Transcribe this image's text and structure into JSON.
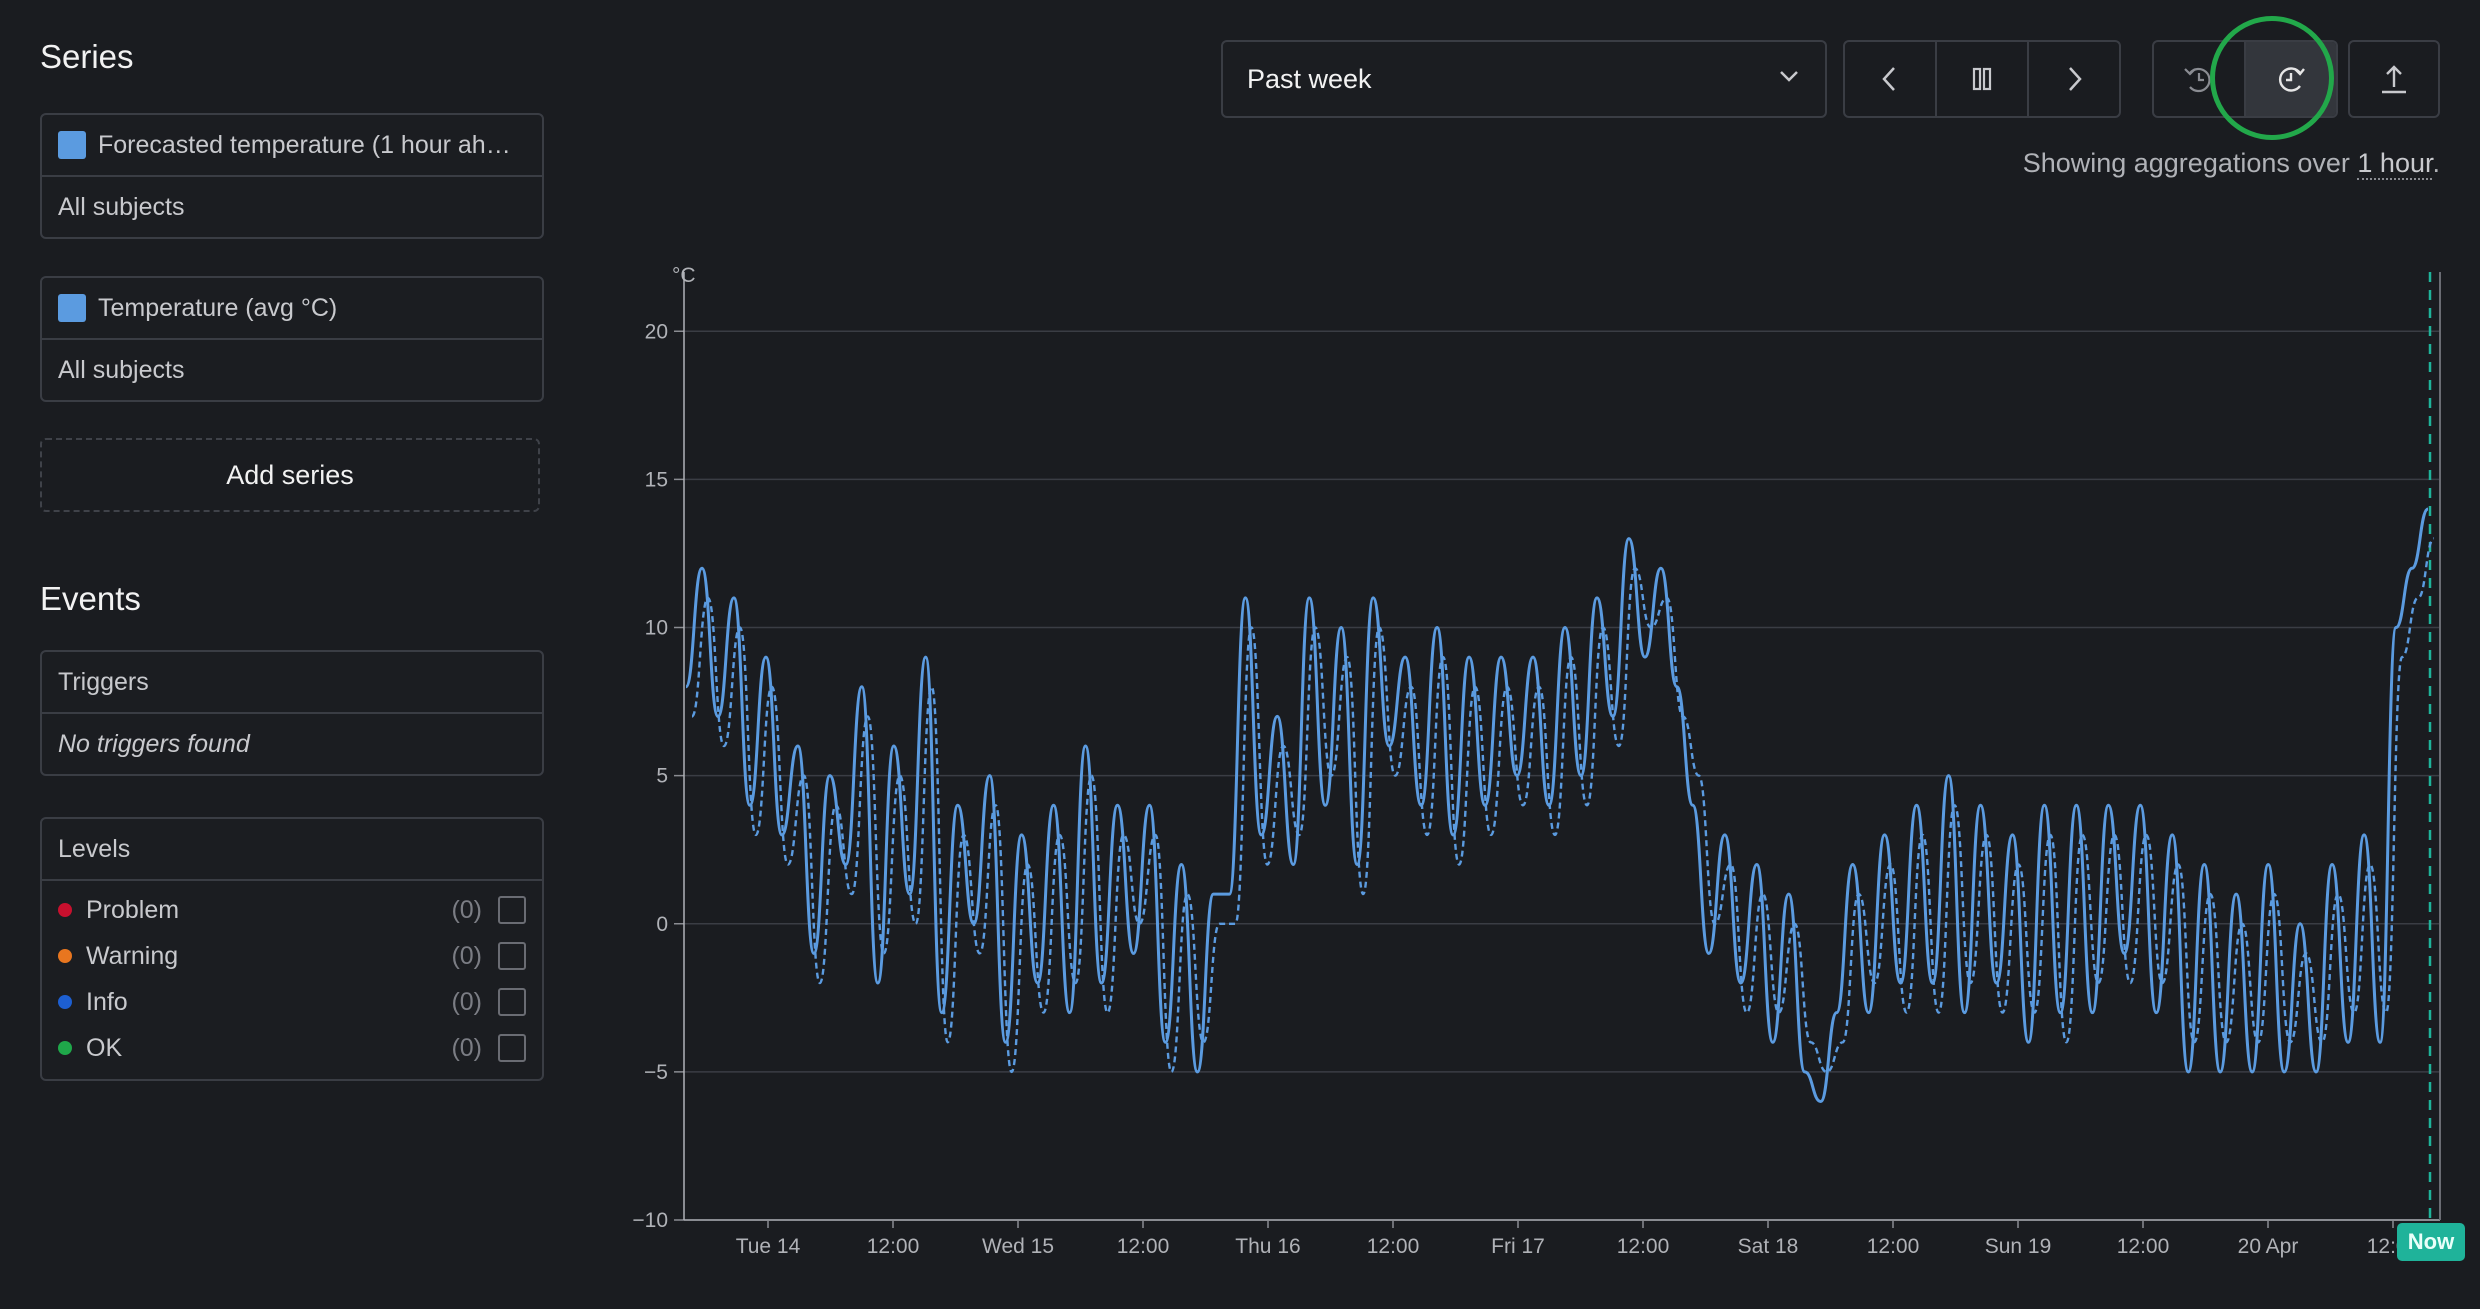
{
  "sidebar": {
    "series_title": "Series",
    "series": [
      {
        "label": "Forecasted temperature (1 hour ah…",
        "subjects": "All subjects",
        "color": "#5b9be0"
      },
      {
        "label": "Temperature (avg °C)",
        "subjects": "All subjects",
        "color": "#5b9be0"
      }
    ],
    "add_series_label": "Add series",
    "events_title": "Events",
    "triggers": {
      "header": "Triggers",
      "empty": "No triggers found"
    },
    "levels": {
      "header": "Levels",
      "items": [
        {
          "label": "Problem",
          "count": "(0)",
          "color": "#c8102e"
        },
        {
          "label": "Warning",
          "count": "(0)",
          "color": "#e8761f"
        },
        {
          "label": "Info",
          "count": "(0)",
          "color": "#1d5fd1"
        },
        {
          "label": "OK",
          "count": "(0)",
          "color": "#1fa84a"
        }
      ]
    }
  },
  "toolbar": {
    "range_value": "Past week",
    "icons": [
      "chevron-down-icon",
      "prev-icon",
      "pause-icon",
      "next-icon",
      "undo-zoom-icon",
      "refresh-icon",
      "export-icon"
    ],
    "aggregation_prefix": "Showing aggregations over ",
    "aggregation_value": "1 hour",
    "aggregation_suffix": "."
  },
  "now_label": "Now",
  "chart_data": {
    "type": "line",
    "unit_label": "°C",
    "ylim": [
      -10,
      22
    ],
    "yticks": [
      -10,
      -5,
      0,
      5,
      10,
      15,
      20
    ],
    "ytick_labels": [
      "−10",
      "−5",
      "0",
      "5",
      "10",
      "15",
      "20"
    ],
    "xticks": [
      "Tue 14",
      "12:00",
      "Wed 15",
      "12:00",
      "Thu 16",
      "12:00",
      "Fri 17",
      "12:00",
      "Sat 18",
      "12:00",
      "Sun 19",
      "12:00",
      "20 Apr",
      "12:00"
    ],
    "grid": true,
    "series": [
      {
        "name": "Temperature (avg °C)",
        "style": "solid",
        "color": "#5b9be0",
        "values": [
          8,
          12,
          7,
          11,
          4,
          9,
          3,
          6,
          -1,
          5,
          2,
          8,
          -2,
          6,
          1,
          9,
          -3,
          4,
          0,
          5,
          -4,
          3,
          -2,
          4,
          -3,
          6,
          -2,
          4,
          -1,
          4,
          -4,
          2,
          -5,
          1,
          1,
          11,
          3,
          7,
          2,
          11,
          4,
          10,
          2,
          11,
          6,
          9,
          4,
          10,
          3,
          9,
          4,
          9,
          5,
          9,
          4,
          10,
          5,
          11,
          7,
          13,
          9,
          12,
          8,
          4,
          -1,
          3,
          -2,
          2,
          -4,
          1,
          -5,
          -6,
          -3,
          2,
          -3,
          3,
          -2,
          4,
          -2,
          5,
          -3,
          4,
          -2,
          3,
          -4,
          4,
          -3,
          4,
          -3,
          4,
          -1,
          4,
          -3,
          3,
          -5,
          2,
          -5,
          1,
          -5,
          2,
          -5,
          0,
          -5,
          2,
          -4,
          3,
          -4,
          10,
          12,
          14
        ]
      },
      {
        "name": "Forecasted temperature (1 hour ah…",
        "style": "dashed",
        "color": "#5b9be0",
        "values": [
          7,
          11,
          6,
          10,
          3,
          8,
          2,
          5,
          -2,
          4,
          1,
          7,
          -1,
          5,
          0,
          8,
          -4,
          3,
          -1,
          4,
          -5,
          2,
          -3,
          3,
          -2,
          5,
          -3,
          3,
          0,
          3,
          -5,
          1,
          -4,
          0,
          0,
          10,
          2,
          6,
          3,
          10,
          5,
          9,
          1,
          10,
          5,
          8,
          3,
          9,
          2,
          8,
          3,
          8,
          4,
          8,
          3,
          9,
          4,
          10,
          6,
          12,
          10,
          11,
          7,
          5,
          0,
          2,
          -3,
          1,
          -3,
          0,
          -4,
          -5,
          -4,
          1,
          -2,
          2,
          -3,
          3,
          -3,
          4,
          -2,
          3,
          -3,
          2,
          -3,
          3,
          -4,
          3,
          -2,
          3,
          -2,
          3,
          -2,
          2,
          -4,
          1,
          -4,
          0,
          -4,
          1,
          -4,
          -1,
          -4,
          1,
          -3,
          2,
          -3,
          9,
          11,
          13
        ]
      }
    ]
  }
}
